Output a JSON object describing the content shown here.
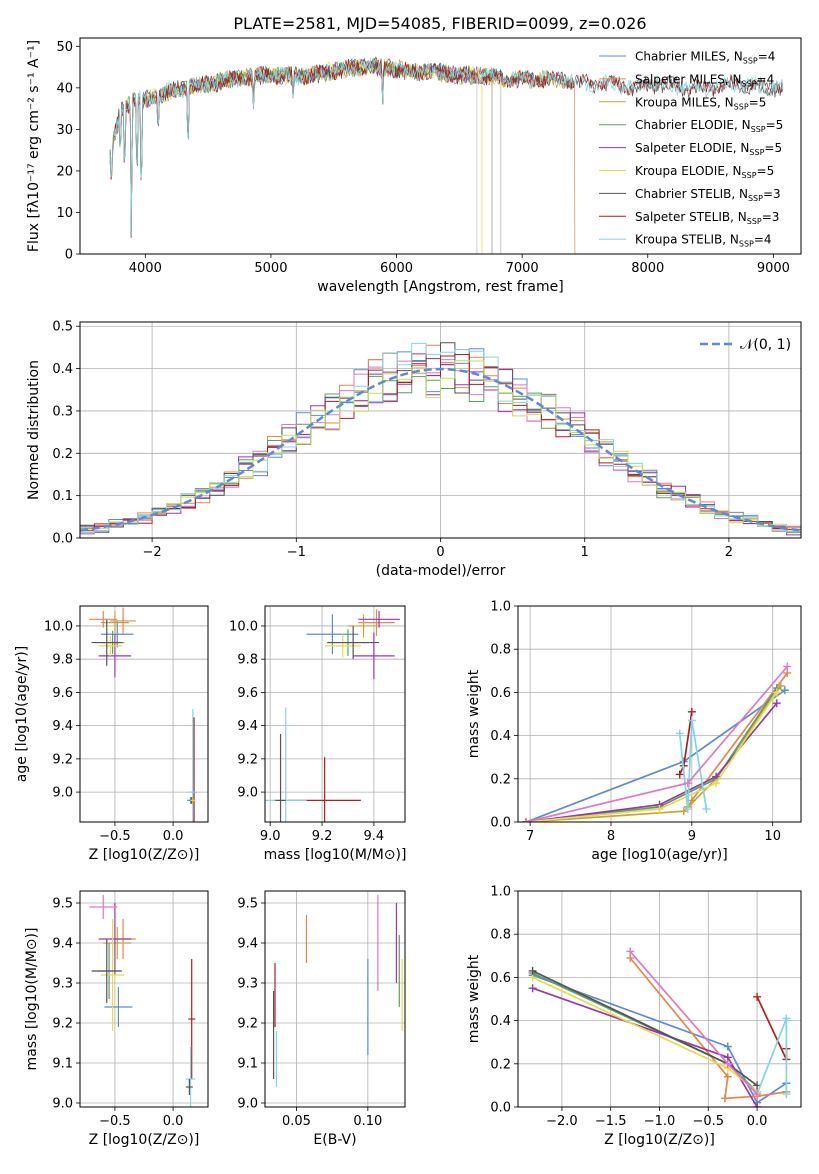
{
  "figure": {
    "title": "PLATE=2581, MJD=54085, FIBERID=0099, z=0.026"
  },
  "colors": {
    "Chabrier MILES": "#5b8bd6",
    "Salpeter MILES": "#e6874a",
    "Kroupa MILES": "#c8a23a",
    "Chabrier ELODIE": "#5b9e62",
    "Salpeter ELODIE": "#9a36b3",
    "Kroupa ELODIE": "#e3dd46",
    "Chabrier STELIB": "#555555",
    "Salpeter STELIB": "#b11f1f",
    "Kroupa STELIB": "#7fd7e0",
    "hist_extra": [
      "#5b8bd6",
      "#e6874a",
      "#5b9e62",
      "#9a36b3",
      "#e377c2",
      "#555555",
      "#b11f1f",
      "#7fd7e0",
      "#bfdf5a"
    ]
  },
  "chart_data": [
    {
      "id": "spectrum",
      "type": "line",
      "title": "PLATE=2581, MJD=54085, FIBERID=0099, z=0.026",
      "xlabel": "wavelength [Angstrom, rest frame]",
      "ylabel": "Flux [fλ10⁻¹⁷ erg cm⁻² s⁻¹ A⁻¹]",
      "xlim": [
        3480,
        9220
      ],
      "ylim": [
        0,
        52
      ],
      "xticks": [
        4000,
        5000,
        6000,
        7000,
        8000,
        9000
      ],
      "yticks": [
        0,
        10,
        20,
        30,
        40,
        50
      ],
      "continuum": {
        "x": [
          3720,
          3800,
          3900,
          4000,
          4100,
          4300,
          4500,
          4700,
          4900,
          5100,
          5300,
          5500,
          5700,
          5900,
          6100,
          6300,
          6500,
          6700,
          6900,
          7100,
          7300,
          7500,
          7700,
          7900,
          8100,
          8300,
          8500,
          8700,
          8900,
          9080
        ],
        "y": [
          24,
          34,
          37,
          37,
          38,
          40,
          41,
          42,
          43,
          43,
          43,
          44,
          45,
          45,
          44,
          44,
          43,
          43,
          42,
          42,
          42,
          41,
          41,
          40,
          41,
          40,
          40,
          41,
          40,
          40
        ]
      },
      "absorption_lines": [
        {
          "x": 3730,
          "y": 15
        },
        {
          "x": 3800,
          "y": 22
        },
        {
          "x": 3835,
          "y": 16
        },
        {
          "x": 3889,
          "y": 0
        },
        {
          "x": 3934,
          "y": 14
        },
        {
          "x": 3968,
          "y": 9
        },
        {
          "x": 4102,
          "y": 28
        },
        {
          "x": 4340,
          "y": 22
        },
        {
          "x": 4861,
          "y": 35
        },
        {
          "x": 5175,
          "y": 37
        },
        {
          "x": 5890,
          "y": 36
        }
      ],
      "series": [
        {
          "name": "Chabrier MILES, N_SSP=4",
          "label_main": "Chabrier MILES, N",
          "label_sub": "SSP",
          "label_tail": "=4",
          "xmax": 7400
        },
        {
          "name": "Salpeter MILES, N_SSP=4",
          "label_main": "Salpeter MILES, N",
          "label_sub": "SSP",
          "label_tail": "=4",
          "xmax": 7420,
          "drop_at": 7420
        },
        {
          "name": "Kroupa MILES, N_SSP=5",
          "label_main": "Kroupa MILES, N",
          "label_sub": "SSP",
          "label_tail": "=5",
          "xmax": 7400
        },
        {
          "name": "Chabrier ELODIE, N_SSP=5",
          "label_main": "Chabrier ELODIE, N",
          "label_sub": "SSP",
          "label_tail": "=5",
          "xmax": 6780
        },
        {
          "name": "Salpeter ELODIE, N_SSP=5",
          "label_main": "Salpeter ELODIE, N",
          "label_sub": "SSP",
          "label_tail": "=5",
          "xmax": 6780
        },
        {
          "name": "Kroupa ELODIE, N_SSP=5",
          "label_main": "Kroupa ELODIE, N",
          "label_sub": "SSP",
          "label_tail": "=5",
          "xmax": 6780
        },
        {
          "name": "Chabrier STELIB, N_SSP=3",
          "label_main": "Chabrier STELIB, N",
          "label_sub": "SSP",
          "label_tail": "=3",
          "xmax": 9080
        },
        {
          "name": "Salpeter STELIB, N_SSP=3",
          "label_main": "Salpeter STELIB, N",
          "label_sub": "SSP",
          "label_tail": "=3",
          "xmax": 9080
        },
        {
          "name": "Kroupa STELIB, N_SSP=4",
          "label_main": "Kroupa STELIB, N",
          "label_sub": "SSP",
          "label_tail": "=4",
          "xmax": 9080
        }
      ]
    },
    {
      "id": "residuals",
      "type": "line",
      "xlabel": "(data-model)/error",
      "ylabel": "Normed distribution",
      "xlim": [
        -2.5,
        2.5
      ],
      "ylim": [
        0,
        0.51
      ],
      "xticks": [
        -2,
        -1,
        0,
        1,
        2
      ],
      "yticks": [
        0.0,
        0.1,
        0.2,
        0.3,
        0.4,
        0.5
      ],
      "grid": true,
      "legend": "top-right",
      "legend_label": "𝒩(0, 1)",
      "bin_width": 0.1,
      "series": [
        {
          "name": "𝒩(0, 1)",
          "type": "gaussian",
          "mean": 0,
          "sigma": 1
        }
      ]
    },
    {
      "id": "age_vs_Z",
      "type": "scatter",
      "xlabel": "Z [log10(Z/Z⊙)]",
      "ylabel": "age  [log10(age/yr)]",
      "xlim": [
        -0.8,
        0.3
      ],
      "ylim": [
        8.82,
        10.12
      ],
      "xticks": [
        -0.5,
        0.0
      ],
      "yticks": [
        9.0,
        9.2,
        9.4,
        9.6,
        9.8,
        10.0
      ],
      "grid": true,
      "points": [
        {
          "key": "Chabrier MILES",
          "x": -0.48,
          "xerr": 0.14,
          "y": 9.95,
          "yerr": 0.08
        },
        {
          "key": "Salpeter MILES",
          "x": -0.43,
          "xerr": 0.11,
          "y": 10.03,
          "yerr": 0.08
        },
        {
          "key": "Kroupa MILES",
          "x": -0.5,
          "xerr": 0.12,
          "y": 10.02,
          "yerr": 0.07
        },
        {
          "key": "Chabrier ELODIE",
          "x": -0.52,
          "xerr": 0.1,
          "y": 9.9,
          "yerr": 0.07
        },
        {
          "key": "Salpeter ELODIE",
          "x": -0.5,
          "xerr": 0.14,
          "y": 9.82,
          "yerr": 0.13
        },
        {
          "key": "Kroupa ELODIE",
          "x": -0.54,
          "xerr": 0.1,
          "y": 9.88,
          "yerr": 0.06
        },
        {
          "key": "Chabrier STELIB",
          "x": -0.57,
          "xerr": 0.13,
          "y": 9.9,
          "yerr": 0.14
        },
        {
          "key": "Salpeter STELIB",
          "x": 0.18,
          "xerr": 0.02,
          "y": 9.0,
          "yerr": 0.45
        },
        {
          "key": "Kroupa STELIB",
          "x": 0.17,
          "xerr": 0.04,
          "y": 9.0,
          "yerr": 0.5
        },
        {
          "key": "Salpeter ELODIE",
          "x": 0.16,
          "xerr": 0.02,
          "y": 8.95,
          "yerr": 0.02
        },
        {
          "key": "Chabrier STELIB",
          "x": 0.16,
          "xerr": 0.02,
          "y": 8.95,
          "yerr": 0.02
        },
        {
          "key": "Chabrier MILES",
          "x": 0.15,
          "xerr": 0.03,
          "y": 8.95,
          "yerr": 0.02
        },
        {
          "key": "Kroupa ELODIE",
          "x": 0.17,
          "xerr": 0.02,
          "y": 8.95,
          "yerr": 0.02
        },
        {
          "key": "Salpeter MILES",
          "x": -0.6,
          "xerr": 0.12,
          "y": 10.04,
          "yerr": 0.05
        }
      ]
    },
    {
      "id": "age_vs_mass",
      "type": "scatter",
      "xlabel": "mass [log10(M/M⊙)]",
      "ylabel": "",
      "xlim": [
        8.98,
        9.52
      ],
      "ylim": [
        8.82,
        10.12
      ],
      "xticks": [
        9.0,
        9.2,
        9.4
      ],
      "yticks": [
        9.0,
        9.2,
        9.4,
        9.6,
        9.8,
        10.0
      ],
      "grid": true,
      "points": [
        {
          "key": "Chabrier MILES",
          "x": 9.24,
          "xerr": 0.1,
          "y": 9.95,
          "yerr": 0.12
        },
        {
          "key": "Salpeter MILES",
          "x": 9.41,
          "xerr": 0.07,
          "y": 10.02,
          "yerr": 0.08
        },
        {
          "key": "Kroupa MILES",
          "x": 9.36,
          "xerr": 0.06,
          "y": 10.0,
          "yerr": 0.07
        },
        {
          "key": "Chabrier ELODIE",
          "x": 9.3,
          "xerr": 0.08,
          "y": 9.9,
          "yerr": 0.08
        },
        {
          "key": "Salpeter ELODIE",
          "x": 9.4,
          "xerr": 0.08,
          "y": 9.82,
          "yerr": 0.14
        },
        {
          "key": "Kroupa ELODIE",
          "x": 9.28,
          "xerr": 0.07,
          "y": 9.88,
          "yerr": 0.07
        },
        {
          "key": "Chabrier STELIB",
          "x": 9.32,
          "xerr": 0.1,
          "y": 9.9,
          "yerr": 0.1
        },
        {
          "key": "Salpeter STELIB",
          "x": 9.21,
          "xerr": 0.14,
          "y": 8.95,
          "yerr": 0.26
        },
        {
          "key": "Kroupa STELIB",
          "x": 9.06,
          "xerr": 0.08,
          "y": 8.95,
          "yerr": 0.56
        },
        {
          "key": "Chabrier STELIB",
          "x": 9.04,
          "xerr": 0.02,
          "y": 8.95,
          "yerr": 0.4
        },
        {
          "key": "Salpeter ELODIE",
          "x": 9.42,
          "xerr": 0.08,
          "y": 10.04,
          "yerr": 0.05
        }
      ]
    },
    {
      "id": "weight_vs_age",
      "type": "line",
      "xlabel": "age  [log10(age/yr)]",
      "ylabel": "mass weight",
      "xlim": [
        6.85,
        10.35
      ],
      "ylim": [
        0,
        1.0
      ],
      "xticks": [
        7,
        8,
        9,
        10
      ],
      "yticks": [
        0.0,
        0.2,
        0.4,
        0.6,
        0.8,
        1.0
      ],
      "grid": true,
      "series": [
        {
          "key": "Chabrier MILES",
          "x": [
            6.95,
            8.9,
            10.15
          ],
          "y": [
            0.0,
            0.28,
            0.61
          ]
        },
        {
          "key": "Salpeter MILES",
          "x": [
            8.95,
            9.0,
            10.18
          ],
          "y": [
            0.07,
            0.1,
            0.69
          ]
        },
        {
          "key": "Kroupa MILES",
          "x": [
            6.95,
            8.9,
            9.3,
            10.1
          ],
          "y": [
            0.0,
            0.05,
            0.2,
            0.63
          ]
        },
        {
          "key": "Chabrier ELODIE",
          "x": [
            6.95,
            8.6,
            9.3,
            10.05
          ],
          "y": [
            0.0,
            0.07,
            0.2,
            0.62
          ]
        },
        {
          "key": "Salpeter ELODIE",
          "x": [
            6.95,
            8.6,
            9.3,
            10.05
          ],
          "y": [
            0.0,
            0.08,
            0.21,
            0.55
          ]
        },
        {
          "key": "Kroupa ELODIE",
          "x": [
            6.95,
            8.6,
            9.3,
            10.05
          ],
          "y": [
            0.0,
            0.06,
            0.18,
            0.6
          ]
        },
        {
          "key": "Salpeter STELIB",
          "x": [
            8.85,
            8.9,
            9.0
          ],
          "y": [
            0.22,
            0.26,
            0.51
          ]
        },
        {
          "key": "Kroupa STELIB",
          "x": [
            8.85,
            8.95,
            9.0,
            9.18
          ],
          "y": [
            0.41,
            0.06,
            0.47,
            0.06
          ]
        },
        {
          "key": "hist_pink",
          "x": [
            6.95,
            8.95,
            10.18
          ],
          "y": [
            0.0,
            0.18,
            0.72
          ]
        }
      ]
    },
    {
      "id": "mass_vs_Z",
      "type": "scatter",
      "xlabel": "Z [log10(Z/Z⊙)]",
      "ylabel": "mass [log10(M/M⊙)]",
      "xlim": [
        -0.8,
        0.3
      ],
      "ylim": [
        8.99,
        9.53
      ],
      "xticks": [
        -0.5,
        0.0
      ],
      "yticks": [
        9.0,
        9.1,
        9.2,
        9.3,
        9.4,
        9.5
      ],
      "grid": true,
      "points": [
        {
          "key": "Chabrier MILES",
          "x": -0.47,
          "xerr": 0.12,
          "y": 9.24,
          "yerr": 0.05
        },
        {
          "key": "Salpeter MILES",
          "x": -0.43,
          "xerr": 0.11,
          "y": 9.41,
          "yerr": 0.05
        },
        {
          "key": "Kroupa MILES",
          "x": -0.48,
          "xerr": 0.12,
          "y": 9.4,
          "yerr": 0.04
        },
        {
          "key": "Chabrier ELODIE",
          "x": -0.55,
          "xerr": 0.1,
          "y": 9.33,
          "yerr": 0.07
        },
        {
          "key": "Salpeter ELODIE",
          "x": -0.5,
          "xerr": 0.14,
          "y": 9.41,
          "yerr": 0.09
        },
        {
          "key": "Kroupa ELODIE",
          "x": -0.52,
          "xerr": 0.1,
          "y": 9.32,
          "yerr": 0.14
        },
        {
          "key": "Chabrier STELIB",
          "x": -0.57,
          "xerr": 0.13,
          "y": 9.33,
          "yerr": 0.08
        },
        {
          "key": "Salpeter STELIB",
          "x": 0.16,
          "xerr": 0.03,
          "y": 9.21,
          "yerr": 0.15
        },
        {
          "key": "Kroupa STELIB",
          "x": 0.15,
          "xerr": 0.04,
          "y": 9.06,
          "yerr": 0.08
        },
        {
          "key": "Chabrier STELIB",
          "x": 0.14,
          "xerr": 0.03,
          "y": 9.04,
          "yerr": 0.02
        },
        {
          "key": "hist_pink",
          "x": -0.6,
          "xerr": 0.12,
          "y": 9.49,
          "yerr": 0.03
        }
      ]
    },
    {
      "id": "mass_vs_EBV",
      "type": "scatter",
      "xlabel": "E(B-V)",
      "ylabel": "",
      "xlim": [
        0.028,
        0.126
      ],
      "ylim": [
        8.99,
        9.53
      ],
      "xticks": [
        0.05,
        0.1
      ],
      "yticks": [
        9.0,
        9.1,
        9.2,
        9.3,
        9.4,
        9.5
      ],
      "grid": true,
      "points": [
        {
          "key": "Chabrier STELIB",
          "x": 0.034,
          "xerr": 0.0,
          "y": 9.17,
          "yerr": 0.11
        },
        {
          "key": "Salpeter STELIB",
          "x": 0.035,
          "xerr": 0.0,
          "y": 9.27,
          "yerr": 0.08
        },
        {
          "key": "Kroupa STELIB",
          "x": 0.036,
          "xerr": 0.0,
          "y": 9.11,
          "yerr": 0.07
        },
        {
          "key": "Salpeter MILES",
          "x": 0.057,
          "xerr": 0.0,
          "y": 9.41,
          "yerr": 0.06
        },
        {
          "key": "Chabrier MILES",
          "x": 0.1,
          "xerr": 0.0,
          "y": 9.24,
          "yerr": 0.12
        },
        {
          "key": "hist_pink",
          "x": 0.107,
          "xerr": 0.0,
          "y": 9.4,
          "yerr": 0.12
        },
        {
          "key": "Salpeter ELODIE",
          "x": 0.12,
          "xerr": 0.0,
          "y": 9.4,
          "yerr": 0.1
        },
        {
          "key": "Chabrier ELODIE",
          "x": 0.122,
          "xerr": 0.0,
          "y": 9.33,
          "yerr": 0.09
        },
        {
          "key": "Kroupa ELODIE",
          "x": 0.124,
          "xerr": 0.0,
          "y": 9.27,
          "yerr": 0.09
        }
      ]
    },
    {
      "id": "weight_vs_Z",
      "type": "line",
      "xlabel": "Z [log10(Z/Z⊙)]",
      "ylabel": "mass weight",
      "xlim": [
        -2.45,
        0.45
      ],
      "ylim": [
        0,
        1.0
      ],
      "xticks": [
        -2.0,
        -1.5,
        -1.0,
        -0.5,
        0.0
      ],
      "yticks": [
        0.0,
        0.2,
        0.4,
        0.6,
        0.8,
        1.0
      ],
      "grid": true,
      "series": [
        {
          "key": "Chabrier MILES",
          "x": [
            -2.3,
            -0.3,
            0.0,
            0.3
          ],
          "y": [
            0.61,
            0.28,
            0.02,
            0.11
          ]
        },
        {
          "key": "Salpeter MILES",
          "x": [
            -1.3,
            -0.3,
            -0.33,
            0.0,
            0.3
          ],
          "y": [
            0.69,
            0.14,
            0.04,
            0.05,
            0.07
          ]
        },
        {
          "key": "Chabrier ELODIE",
          "x": [
            -2.3,
            -0.3,
            0.0
          ],
          "y": [
            0.62,
            0.2,
            0.07
          ]
        },
        {
          "key": "Salpeter ELODIE",
          "x": [
            -2.3,
            -0.3,
            0.0
          ],
          "y": [
            0.55,
            0.23,
            0.0
          ]
        },
        {
          "key": "Kroupa ELODIE",
          "x": [
            -2.3,
            -0.3,
            0.0
          ],
          "y": [
            0.6,
            0.18,
            0.07
          ]
        },
        {
          "key": "Chabrier STELIB",
          "x": [
            -2.3,
            -0.3,
            0.0
          ],
          "y": [
            0.63,
            0.2,
            0.1
          ]
        },
        {
          "key": "Salpeter STELIB",
          "x": [
            0.0,
            0.3,
            0.3
          ],
          "y": [
            0.51,
            0.22,
            0.27
          ]
        },
        {
          "key": "Kroupa STELIB",
          "x": [
            0.0,
            0.3,
            0.3
          ],
          "y": [
            0.06,
            0.41,
            0.06
          ]
        },
        {
          "key": "hist_pink",
          "x": [
            -1.3,
            -0.3,
            0.0
          ],
          "y": [
            0.72,
            0.2,
            0.06
          ]
        }
      ]
    }
  ]
}
